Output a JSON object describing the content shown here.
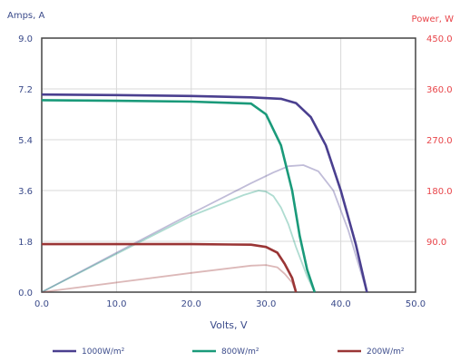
{
  "chart_data": {
    "type": "line",
    "xlabel": "Volts, V",
    "ylabel": "Amps, A",
    "y2label": "Power, W",
    "xlim": [
      0,
      50
    ],
    "ylim": [
      0,
      9
    ],
    "y2lim": [
      0,
      450
    ],
    "x_ticks": [
      "0.0",
      "10.0",
      "20.0",
      "30.0",
      "40.0",
      "50.0"
    ],
    "y_ticks": [
      "0.0",
      "1.8",
      "3.6",
      "5.4",
      "7.2",
      "9.0"
    ],
    "y2_ticks": [
      "90.0",
      "180.0",
      "270.0",
      "360.0",
      "450.0"
    ],
    "grid": true,
    "legend_position": "bottom",
    "series": [
      {
        "name": "1000W/m²",
        "color": "#4a3f8f",
        "current": [
          [
            0,
            7.0
          ],
          [
            10,
            6.98
          ],
          [
            20,
            6.95
          ],
          [
            28,
            6.9
          ],
          [
            32,
            6.85
          ],
          [
            34,
            6.7
          ],
          [
            36,
            6.2
          ],
          [
            38,
            5.2
          ],
          [
            40,
            3.6
          ],
          [
            42,
            1.7
          ],
          [
            43.5,
            0
          ]
        ],
        "power": [
          [
            0,
            0
          ],
          [
            10,
            69.8
          ],
          [
            20,
            139
          ],
          [
            28,
            193
          ],
          [
            31,
            212
          ],
          [
            33,
            223
          ],
          [
            35,
            225
          ],
          [
            37,
            214
          ],
          [
            39,
            180
          ],
          [
            41,
            110
          ],
          [
            43.5,
            0
          ]
        ]
      },
      {
        "name": "800W/m²",
        "color": "#1a9a7a",
        "current": [
          [
            0,
            6.8
          ],
          [
            10,
            6.78
          ],
          [
            20,
            6.75
          ],
          [
            28,
            6.68
          ],
          [
            30,
            6.3
          ],
          [
            32,
            5.2
          ],
          [
            33.5,
            3.6
          ],
          [
            34.5,
            2.0
          ],
          [
            35.5,
            0.8
          ],
          [
            36.5,
            0
          ]
        ],
        "power": [
          [
            0,
            0
          ],
          [
            10,
            67.8
          ],
          [
            20,
            135
          ],
          [
            27,
            172
          ],
          [
            29,
            180
          ],
          [
            30,
            178
          ],
          [
            31,
            170
          ],
          [
            32,
            150
          ],
          [
            33,
            120
          ],
          [
            34,
            80
          ],
          [
            35.5,
            28
          ],
          [
            36.5,
            0
          ]
        ]
      },
      {
        "name": "200W/m²",
        "color": "#9a3535",
        "current": [
          [
            0,
            1.7
          ],
          [
            10,
            1.7
          ],
          [
            20,
            1.7
          ],
          [
            28,
            1.68
          ],
          [
            30,
            1.6
          ],
          [
            31.5,
            1.4
          ],
          [
            32.5,
            1.0
          ],
          [
            33.5,
            0.5
          ],
          [
            34,
            0
          ]
        ],
        "power": [
          [
            0,
            0
          ],
          [
            10,
            17
          ],
          [
            20,
            34
          ],
          [
            28,
            47
          ],
          [
            30,
            48
          ],
          [
            31.5,
            44
          ],
          [
            32.5,
            32.5
          ],
          [
            33.5,
            17
          ],
          [
            34,
            0
          ]
        ]
      }
    ]
  }
}
